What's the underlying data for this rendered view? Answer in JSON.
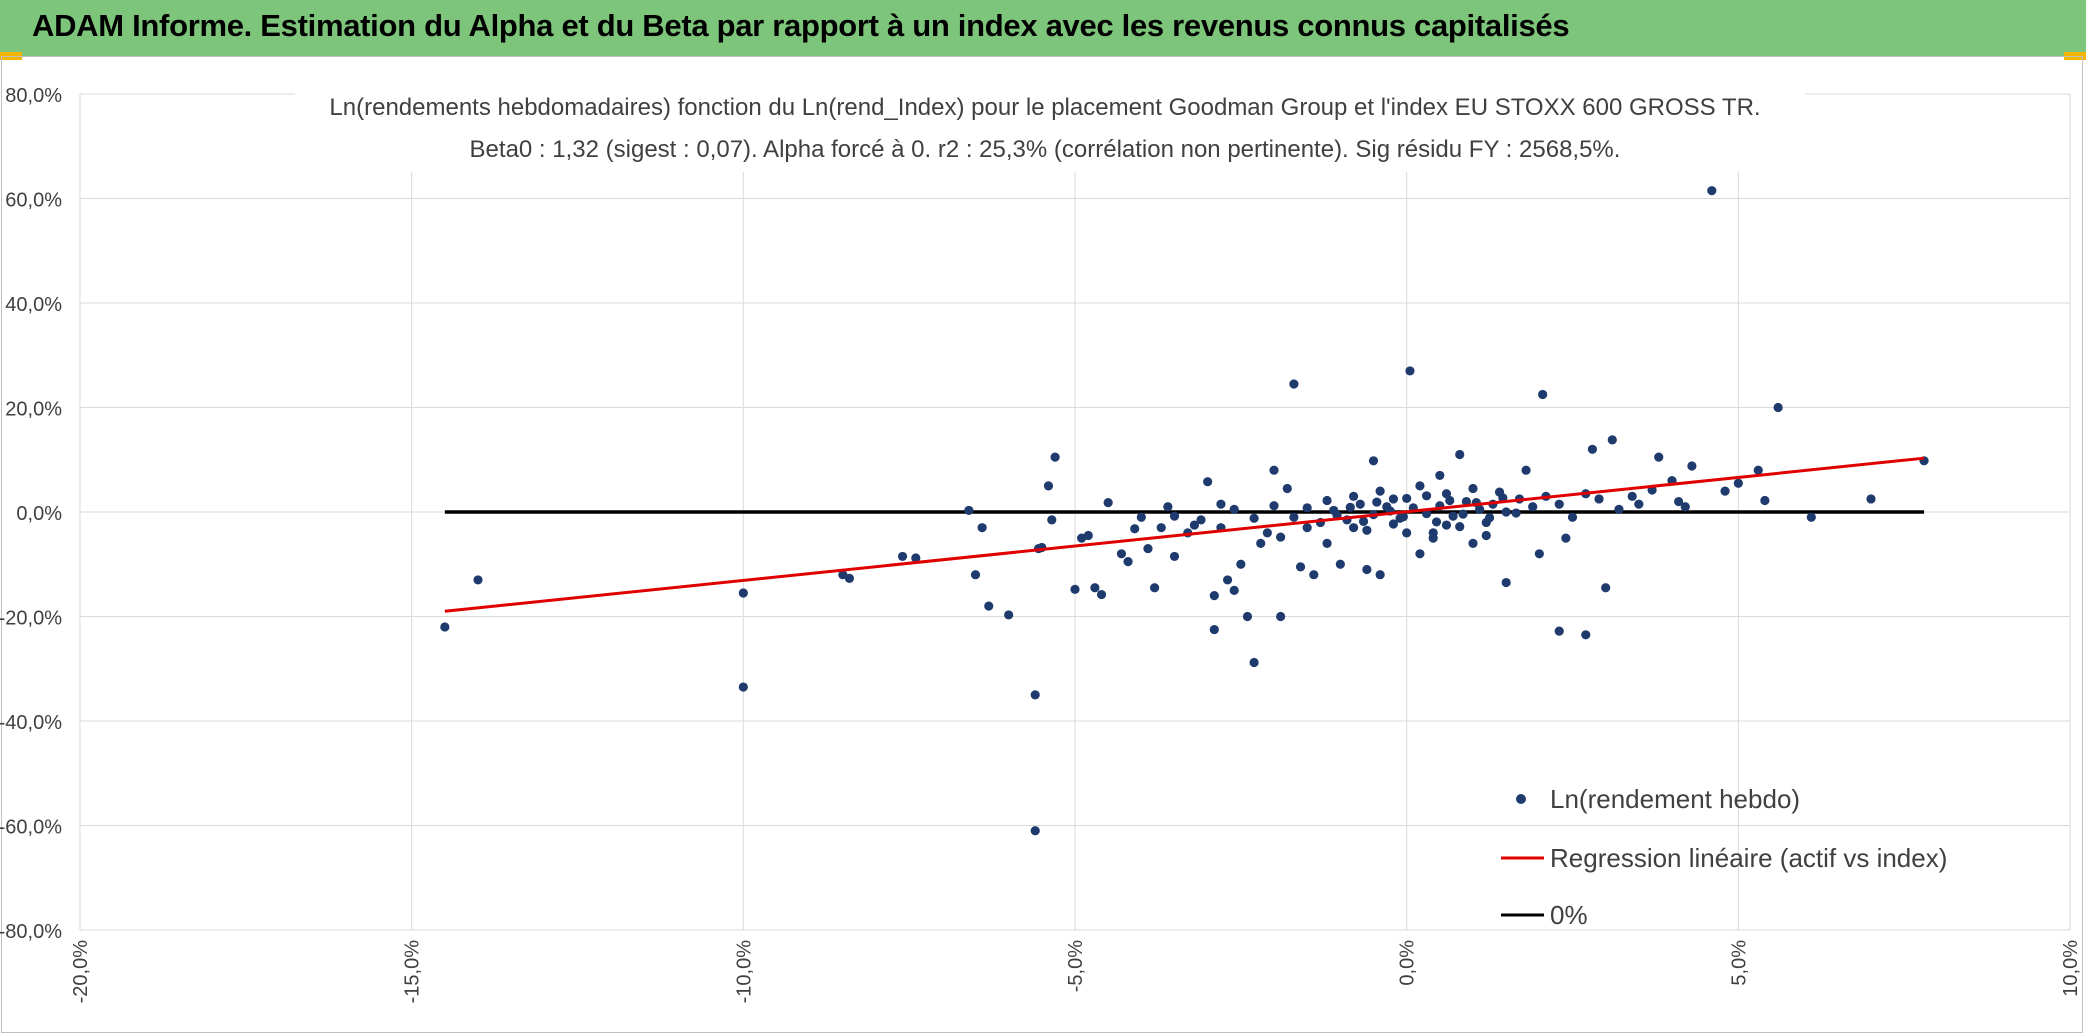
{
  "header": {
    "title": "ADAM Informe. Estimation du Alpha et du Beta par rapport à un index avec les revenus connus capitalisés"
  },
  "colors": {
    "header_bg": "#7dc57a",
    "scatter": "#1f3b6e",
    "regression": "#e00000",
    "zero_line": "#000000",
    "grid": "#d9d9d9"
  },
  "chart_data": {
    "type": "scatter",
    "title": "Ln(rendements hebdomadaires) fonction du Ln(rend_Index) pour le placement Goodman Group et l'index EU STOXX 600 GROSS TR.",
    "subtitle": "Beta0 : 1,32 (sigest : 0,07). Alpha forcé à 0. r2 : 25,3% (corrélation non pertinente). Sig résidu FY : 2568,5%.",
    "xlabel": "",
    "ylabel": "",
    "xlim": [
      -20,
      10
    ],
    "ylim": [
      -80,
      80
    ],
    "x_ticks": [
      "-20,0%",
      "-15,0%",
      "-10,0%",
      "-5,0%",
      "0,0%",
      "5,0%",
      "10,0%"
    ],
    "y_ticks": [
      "80,0%",
      "60,0%",
      "40,0%",
      "20,0%",
      "0,0%",
      "-20,0%",
      "-40,0%",
      "-60,0%",
      "-80,0%"
    ],
    "grid": true,
    "legend_position": "bottom-right",
    "series": [
      {
        "name": "Ln(rendement hebdo)",
        "kind": "scatter",
        "points": [
          [
            -14.5,
            -22
          ],
          [
            -14,
            -13
          ],
          [
            -10,
            -33.5
          ],
          [
            -10,
            -15.5
          ],
          [
            -8.5,
            -12
          ],
          [
            -8.4,
            -12.7
          ],
          [
            -7.6,
            -8.5
          ],
          [
            -7.4,
            -8.8
          ],
          [
            -6.6,
            0.3
          ],
          [
            -6.5,
            -12
          ],
          [
            -6.4,
            -3
          ],
          [
            -6.3,
            -18
          ],
          [
            -6,
            -19.7
          ],
          [
            -5.6,
            -35
          ],
          [
            -5.6,
            -61
          ],
          [
            -5.55,
            -7
          ],
          [
            -5.5,
            -6.8
          ],
          [
            -5.4,
            5
          ],
          [
            -5.35,
            -1.5
          ],
          [
            -5.3,
            10.5
          ],
          [
            -5,
            -14.8
          ],
          [
            -4.9,
            -5
          ],
          [
            -4.8,
            -4.5
          ],
          [
            -4.7,
            -14.5
          ],
          [
            -4.6,
            -15.8
          ],
          [
            -4.5,
            1.8
          ],
          [
            -4.3,
            -8
          ],
          [
            -4.2,
            -9.5
          ],
          [
            -4,
            -1
          ],
          [
            -3.9,
            -7
          ],
          [
            -3.8,
            -14.5
          ],
          [
            -3.7,
            -3
          ],
          [
            -3.5,
            -8.5
          ],
          [
            -3.3,
            -4
          ],
          [
            -3.2,
            -2.5
          ],
          [
            -3,
            5.8
          ],
          [
            -2.9,
            -22.5
          ],
          [
            -2.9,
            -16
          ],
          [
            -2.8,
            -3
          ],
          [
            -2.7,
            -13
          ],
          [
            -2.6,
            -15
          ],
          [
            -2.5,
            -10
          ],
          [
            -2.4,
            -20
          ],
          [
            -2.3,
            -28.8
          ],
          [
            -2.2,
            -6
          ],
          [
            -2.1,
            -4
          ],
          [
            -2,
            8
          ],
          [
            -1.9,
            -20
          ],
          [
            -1.8,
            4.5
          ],
          [
            -1.7,
            24.5
          ],
          [
            -1.6,
            -10.5
          ],
          [
            -1.5,
            -3
          ],
          [
            -1.4,
            -12
          ],
          [
            -1.2,
            -6
          ],
          [
            -1,
            -10
          ],
          [
            -0.8,
            -3
          ],
          [
            -0.6,
            -11
          ],
          [
            -0.5,
            9.8
          ],
          [
            -0.4,
            -12
          ],
          [
            -0.2,
            2.5
          ],
          [
            0.05,
            27
          ],
          [
            0.2,
            -8
          ],
          [
            0.4,
            -4
          ],
          [
            0.5,
            7
          ],
          [
            0.6,
            -2.5
          ],
          [
            0.8,
            11
          ],
          [
            1,
            -6
          ],
          [
            1.2,
            -2
          ],
          [
            1.5,
            -13.5
          ],
          [
            1.8,
            8
          ],
          [
            2,
            -8
          ],
          [
            2.05,
            22.5
          ],
          [
            2.4,
            -5
          ],
          [
            2.3,
            -22.8
          ],
          [
            2.7,
            -23.5
          ],
          [
            2.8,
            12
          ],
          [
            3,
            -14.5
          ],
          [
            3.1,
            13.8
          ],
          [
            3.5,
            1.5
          ],
          [
            3.8,
            10.5
          ],
          [
            4,
            6
          ],
          [
            4.2,
            1
          ],
          [
            4.3,
            8.8
          ],
          [
            4.6,
            61.5
          ],
          [
            4.8,
            4
          ],
          [
            5,
            5.5
          ],
          [
            5.3,
            8
          ],
          [
            5.6,
            20
          ],
          [
            5.4,
            2.2
          ],
          [
            6.1,
            -1
          ],
          [
            7,
            2.5
          ],
          [
            7.8,
            9.8
          ],
          [
            -3.5,
            -0.8
          ],
          [
            -3.1,
            -1.5
          ],
          [
            -2.6,
            0.5
          ],
          [
            -2.3,
            -1.2
          ],
          [
            -2,
            1.2
          ],
          [
            -1.7,
            -1
          ],
          [
            -1.5,
            0.8
          ],
          [
            -1.3,
            -2
          ],
          [
            -1.1,
            0.3
          ],
          [
            -0.9,
            -1.5
          ],
          [
            -0.7,
            1.5
          ],
          [
            -0.5,
            -0.5
          ],
          [
            -0.3,
            1
          ],
          [
            -0.1,
            -1.2
          ],
          [
            0.1,
            0.8
          ],
          [
            0.3,
            -0.3
          ],
          [
            0.5,
            1.2
          ],
          [
            0.7,
            -0.8
          ],
          [
            0.9,
            2
          ],
          [
            1.1,
            0.5
          ],
          [
            1.3,
            1.5
          ],
          [
            1.5,
            0
          ],
          [
            1.7,
            2.5
          ],
          [
            1.9,
            1
          ],
          [
            2.1,
            3
          ],
          [
            2.3,
            1.5
          ],
          [
            2.5,
            -1
          ],
          [
            2.7,
            3.5
          ],
          [
            2.9,
            2.5
          ],
          [
            3.2,
            0.5
          ],
          [
            3.4,
            3
          ],
          [
            -0.8,
            3
          ],
          [
            -0.4,
            4
          ],
          [
            0.2,
            5
          ],
          [
            0.6,
            3.5
          ],
          [
            1,
            4.5
          ],
          [
            1.4,
            3.8
          ],
          [
            -1.2,
            2.2
          ],
          [
            -0.6,
            -3.5
          ],
          [
            0,
            -4
          ],
          [
            0.4,
            -5
          ],
          [
            0.8,
            -2.8
          ],
          [
            1.2,
            -4.5
          ],
          [
            -2.8,
            1.5
          ],
          [
            -3.6,
            1
          ],
          [
            -4.1,
            -3.2
          ],
          [
            -1.9,
            -4.8
          ],
          [
            3.7,
            4.2
          ],
          [
            4.1,
            2
          ],
          [
            -0.2,
            -2.3
          ],
          [
            0.0,
            2.6
          ],
          [
            0.3,
            3.1
          ],
          [
            0.45,
            -1.9
          ],
          [
            0.65,
            2.2
          ],
          [
            0.85,
            -0.4
          ],
          [
            1.05,
            1.8
          ],
          [
            1.25,
            -1.1
          ],
          [
            1.45,
            2.7
          ],
          [
            1.65,
            -0.2
          ],
          [
            -1.05,
            -0.6
          ],
          [
            -0.85,
            0.9
          ],
          [
            -0.65,
            -1.8
          ],
          [
            -0.45,
            1.9
          ],
          [
            -0.25,
            0.2
          ],
          [
            -0.05,
            -0.9
          ]
        ]
      },
      {
        "name": "Regression linéaire (actif vs index)",
        "kind": "line",
        "points": [
          [
            -14.5,
            -19
          ],
          [
            7.8,
            10.3
          ]
        ]
      },
      {
        "name": "0%",
        "kind": "line",
        "points": [
          [
            -14.5,
            0
          ],
          [
            7.8,
            0
          ]
        ]
      }
    ]
  }
}
